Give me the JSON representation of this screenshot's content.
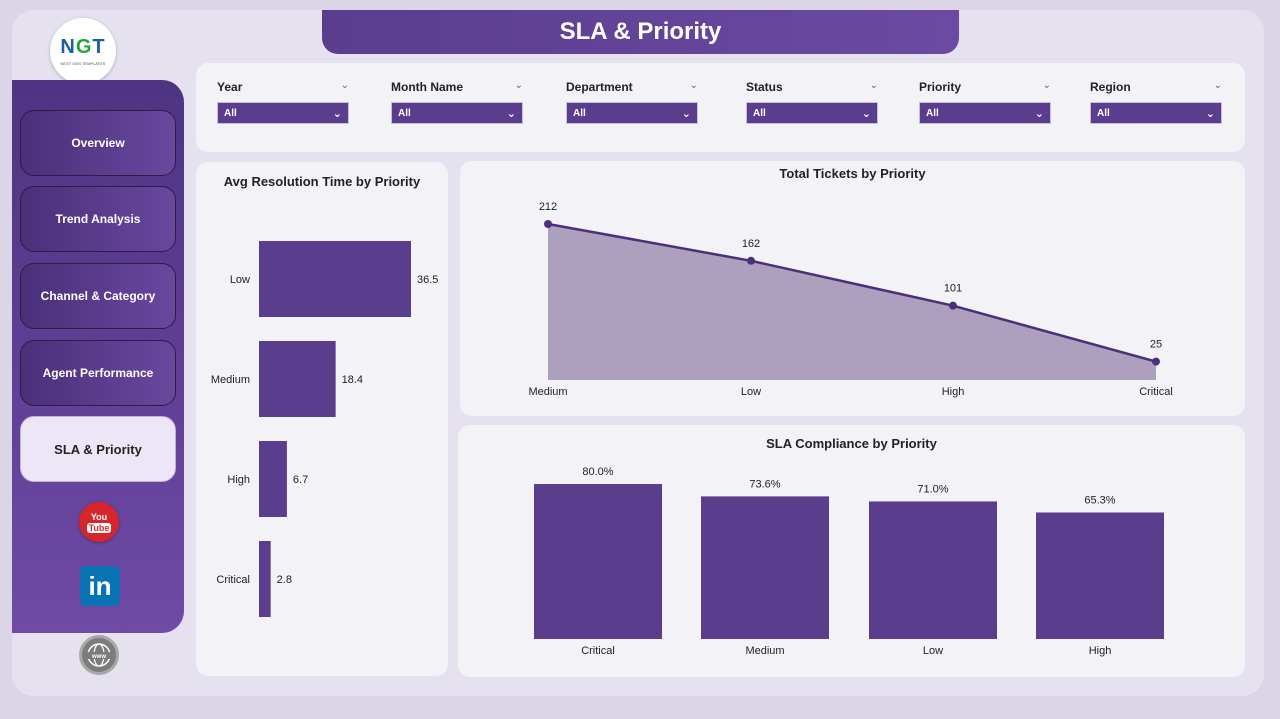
{
  "header": {
    "title": "SLA & Priority"
  },
  "logo": {
    "text_main_1": "N",
    "text_main_2": "G",
    "text_main_3": "T",
    "text_sub": "NEXT GEN TEMPLATES"
  },
  "nav": {
    "items": [
      {
        "label": "Overview"
      },
      {
        "label": "Trend Analysis"
      },
      {
        "label": "Channel & Category"
      },
      {
        "label": "Agent Performance"
      },
      {
        "label": "SLA & Priority"
      }
    ]
  },
  "social": [
    {
      "icon": "youtube-icon",
      "text": "You Tube"
    },
    {
      "icon": "linkedin-icon",
      "text": "in"
    },
    {
      "icon": "globe-icon",
      "text": "www"
    }
  ],
  "filters": [
    {
      "label": "Year",
      "value": "All"
    },
    {
      "label": "Month Name",
      "value": "All"
    },
    {
      "label": "Department",
      "value": "All"
    },
    {
      "label": "Status",
      "value": "All"
    },
    {
      "label": "Priority",
      "value": "All"
    },
    {
      "label": "Region",
      "value": "All"
    }
  ],
  "colors": {
    "accent": "#5a3d8d",
    "area_fill": "#ad9fbe",
    "line": "#4b2f7a"
  },
  "chart_data": [
    {
      "type": "bar",
      "orientation": "horizontal",
      "title": "Avg Resolution Time by Priority",
      "categories": [
        "Low",
        "Medium",
        "High",
        "Critical"
      ],
      "values": [
        36.5,
        18.4,
        6.7,
        2.8
      ],
      "value_labels": [
        "36.5",
        "18.4",
        "6.7",
        "2.8"
      ]
    },
    {
      "type": "area",
      "title": "Total Tickets by Priority",
      "categories": [
        "Medium",
        "Low",
        "High",
        "Critical"
      ],
      "values": [
        212,
        162,
        101,
        25
      ],
      "value_labels": [
        "212",
        "162",
        "101",
        "25"
      ]
    },
    {
      "type": "bar",
      "title": "SLA Compliance by Priority",
      "categories": [
        "Critical",
        "Medium",
        "Low",
        "High"
      ],
      "values": [
        80.0,
        73.6,
        71.0,
        65.3
      ],
      "value_labels": [
        "80.0%",
        "73.6%",
        "71.0%",
        "65.3%"
      ]
    }
  ]
}
